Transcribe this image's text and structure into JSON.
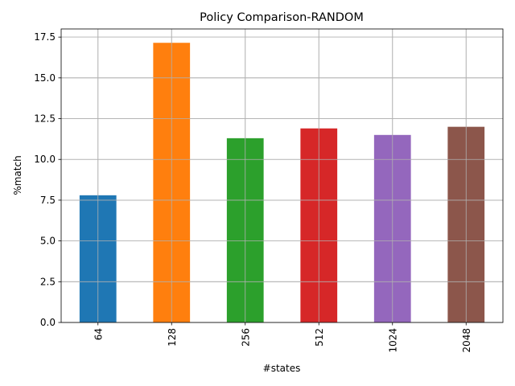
{
  "chart_data": {
    "type": "bar",
    "title": "Policy Comparison-RANDOM",
    "xlabel": "#states",
    "ylabel": "%match",
    "categories": [
      "64",
      "128",
      "256",
      "512",
      "1024",
      "2048"
    ],
    "values": [
      7.8,
      17.15,
      11.3,
      11.9,
      11.5,
      12.0
    ],
    "colors": [
      "#1f77b4",
      "#ff7f0e",
      "#2ca02c",
      "#d62728",
      "#9467bd",
      "#8c564b"
    ],
    "ylim": [
      0,
      18.0
    ],
    "yticks": [
      0.0,
      2.5,
      5.0,
      7.5,
      10.0,
      12.5,
      15.0,
      17.5
    ],
    "ytick_labels": [
      "0.0",
      "2.5",
      "5.0",
      "7.5",
      "10.0",
      "12.5",
      "15.0",
      "17.5"
    ],
    "grid": true,
    "legend": "none",
    "xtick_rotation": "vertical"
  }
}
